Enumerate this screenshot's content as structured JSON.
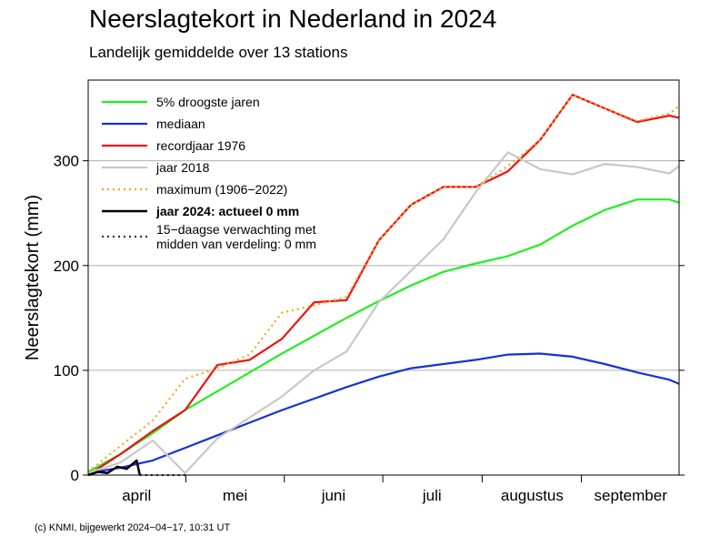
{
  "chart_data": {
    "type": "line",
    "title": "Neerslagtekort in Nederland in 2024",
    "subtitle": "Landelijk gemiddelde over 13 stations",
    "y_label": "Neerslagtekort (mm)",
    "footer": "(c) KNMI, bijgewerkt 2024−04−17, 10:31 UT",
    "x": [
      0,
      10,
      20,
      30,
      40,
      50,
      60,
      70,
      80,
      90,
      100,
      110,
      120,
      130,
      140,
      150,
      160,
      170,
      180,
      183
    ],
    "xlim": [
      0,
      183
    ],
    "xticks": [
      {
        "value": 15,
        "label": "april"
      },
      {
        "value": 45.5,
        "label": "mei"
      },
      {
        "value": 76,
        "label": "juni"
      },
      {
        "value": 106.5,
        "label": "juli"
      },
      {
        "value": 137.5,
        "label": "augustus"
      },
      {
        "value": 168,
        "label": "september"
      }
    ],
    "ylim": [
      0,
      377
    ],
    "yticks": [
      0,
      100,
      200,
      300
    ],
    "grid": true,
    "series": [
      {
        "name": "5% droogste jaren",
        "color": "#22ee22",
        "dash": "solid",
        "values": [
          3,
          20,
          40,
          62,
          80,
          98,
          116,
          133,
          150,
          166,
          181,
          194,
          202,
          209,
          220,
          238,
          253,
          263,
          263,
          260
        ]
      },
      {
        "name": "mediaan",
        "color": "#1530d8",
        "dash": "solid",
        "values": [
          2,
          7,
          14,
          26,
          38,
          50,
          62,
          73,
          84,
          94,
          102,
          106,
          110,
          115,
          116,
          113,
          106,
          98,
          91,
          87
        ]
      },
      {
        "name": "recordjaar 1976",
        "color": "#ee1111",
        "dash": "solid",
        "values": [
          0,
          20,
          42,
          62,
          105,
          110,
          130,
          165,
          167,
          224,
          258,
          275,
          275,
          290,
          320,
          363,
          350,
          337,
          343,
          341
        ]
      },
      {
        "name": "jaar 2018",
        "color": "#c8c8c8",
        "dash": "solid",
        "values": [
          2,
          12,
          33,
          2,
          35,
          55,
          75,
          100,
          118,
          165,
          195,
          225,
          270,
          308,
          292,
          287,
          297,
          294,
          288,
          295
        ]
      },
      {
        "name": "maximum (1906−2022)",
        "color": "#ffa020",
        "dash": "dotted",
        "values": [
          3,
          28,
          52,
          92,
          102,
          115,
          155,
          162,
          170,
          224,
          258,
          275,
          275,
          295,
          320,
          363,
          350,
          338,
          345,
          352
        ]
      },
      {
        "name": "jaar 2024: actueel 0 mm",
        "color": "#000000",
        "dash": "solid",
        "bold": true,
        "x": [
          0,
          3,
          6,
          9,
          12,
          15,
          16
        ],
        "values": [
          0,
          3,
          2,
          8,
          6,
          14,
          0
        ]
      },
      {
        "name": "15−daagse verwachting met\nmidden van verdeling: 0 mm",
        "color": "#333333",
        "dash": "dotted",
        "x": [
          16,
          31
        ],
        "values": [
          0,
          0
        ]
      }
    ]
  }
}
